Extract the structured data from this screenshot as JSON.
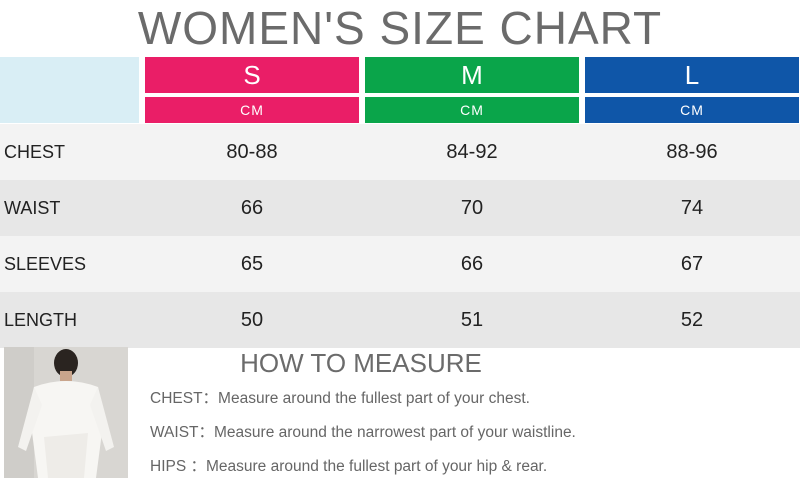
{
  "title": "WOMEN'S SIZE CHART",
  "sizes": [
    {
      "label": "S",
      "unit": "CM",
      "color": "#ea1e67"
    },
    {
      "label": "M",
      "unit": "CM",
      "color": "#0aa54a"
    },
    {
      "label": "L",
      "unit": "CM",
      "color": "#0f56a8"
    }
  ],
  "rows": [
    {
      "label": "CHEST",
      "values": [
        "80-88",
        "84-92",
        "88-96"
      ]
    },
    {
      "label": "WAIST",
      "values": [
        "66",
        "70",
        "74"
      ]
    },
    {
      "label": "SLEEVES",
      "values": [
        "65",
        "66",
        "67"
      ]
    },
    {
      "label": "LENGTH",
      "values": [
        "50",
        "51",
        "52"
      ]
    }
  ],
  "measure": {
    "title": "HOW TO MEASURE",
    "lines": [
      {
        "key": "CHEST：",
        "text": "Measure around the fullest part of your chest."
      },
      {
        "key": "WAIST：",
        "text": "Measure around the narrowest part of your waistline."
      },
      {
        "key": "HIPS ：",
        "text": "Measure around the fullest part of your hip & rear."
      }
    ]
  }
}
